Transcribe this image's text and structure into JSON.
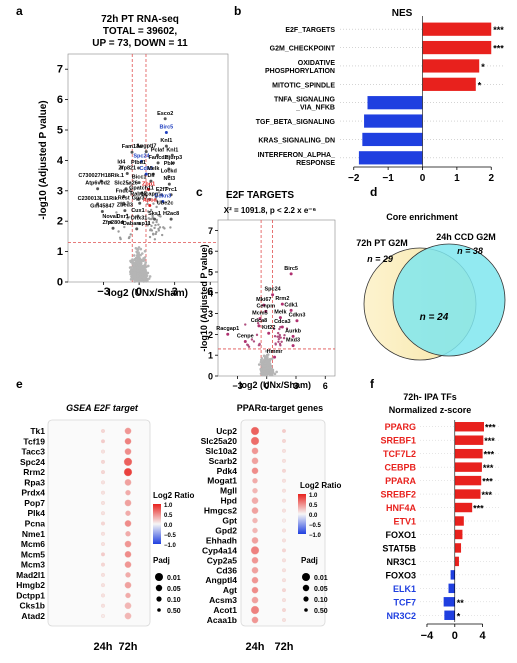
{
  "panels": {
    "a": {
      "letter": "a",
      "title_lines": [
        "72h PT RNA-seq",
        "TOTAL = 39602,",
        "UP = 73, DOWN = 11"
      ],
      "chart_data": {
        "type": "scatter",
        "xlabel": "log2 (UNx/Sham)",
        "ylabel": "-log10 (Adjusted P value)",
        "xlim": [
          -6,
          7.5
        ],
        "ylim": [
          0,
          7.5
        ],
        "x_ticks": [
          -3,
          0,
          3,
          6
        ],
        "y_ticks": [
          0,
          1,
          2,
          3,
          4,
          5,
          6,
          7
        ],
        "threshold_lines": {
          "x": [
            -0.58,
            0.58
          ],
          "y": 1.3
        },
        "labels": [
          {
            "name": "Esco2",
            "x": 2.2,
            "y": 5.5,
            "color": "#000000"
          },
          {
            "name": "Birc5",
            "x": 2.3,
            "y": 5.05,
            "color": "#1f3fbf"
          },
          {
            "name": "Knl1",
            "x": 2.3,
            "y": 4.6,
            "color": "#000000"
          },
          {
            "name": "Fam13a",
            "x": -0.6,
            "y": 4.4,
            "color": "#000000"
          },
          {
            "name": "Angptl7",
            "x": 0.6,
            "y": 4.42,
            "color": "#000000"
          },
          {
            "name": "Pclaf",
            "x": 1.55,
            "y": 4.3,
            "color": "#000000"
          },
          {
            "name": "Knl1",
            "x": 2.8,
            "y": 4.3,
            "color": "#000000"
          },
          {
            "name": "Spc24",
            "x": 0.2,
            "y": 4.1,
            "color": "#1f3fbf"
          },
          {
            "name": "Fancd2",
            "x": 1.6,
            "y": 4.05,
            "color": "#000000"
          },
          {
            "name": "Hjurp3",
            "x": 2.9,
            "y": 4.05,
            "color": "#000000"
          },
          {
            "name": "Id4",
            "x": -1.5,
            "y": 3.9,
            "color": "#000000"
          },
          {
            "name": "Plbd1",
            "x": -0.05,
            "y": 3.88,
            "color": "#000000"
          },
          {
            "name": "Pbk",
            "x": 2.5,
            "y": 3.85,
            "color": "#000000"
          },
          {
            "name": "Zfp821",
            "x": -1.0,
            "y": 3.7,
            "color": "#000000"
          },
          {
            "name": "Cdk3",
            "x": 0.6,
            "y": 3.68,
            "color": "#1f3fbf"
          },
          {
            "name": "Melk",
            "x": 1.2,
            "y": 3.68,
            "color": "#000000"
          },
          {
            "name": "Lockd",
            "x": 2.5,
            "y": 3.6,
            "color": "#000000"
          },
          {
            "name": "C730027H18Rik.1",
            "x": -3.2,
            "y": 3.45,
            "color": "#000000"
          },
          {
            "name": "Bicc1",
            "x": 0.0,
            "y": 3.4,
            "color": "#000000"
          },
          {
            "name": "Dll",
            "x": 1.0,
            "y": 3.45,
            "color": "#000000"
          },
          {
            "name": "Ncl3",
            "x": 2.55,
            "y": 3.35,
            "color": "#000000"
          },
          {
            "name": "Atp6v0d2",
            "x": -3.5,
            "y": 3.2,
            "color": "#000000"
          },
          {
            "name": "Slc25a26",
            "x": -1.1,
            "y": 3.2,
            "color": "#000000"
          },
          {
            "name": "Zbp1",
            "x": 0.8,
            "y": 3.18,
            "color": "#e02020"
          },
          {
            "name": "Fndc4",
            "x": -1.3,
            "y": 2.95,
            "color": "#000000"
          },
          {
            "name": "Gpatch11",
            "x": 0.2,
            "y": 3.05,
            "color": "#000000"
          },
          {
            "name": "E2f7",
            "x": 1.9,
            "y": 3.0,
            "color": "#000000"
          },
          {
            "name": "Prc1",
            "x": 2.7,
            "y": 3.0,
            "color": "#000000"
          },
          {
            "name": "Rab17",
            "x": -0.05,
            "y": 2.85,
            "color": "#000000"
          },
          {
            "name": "Ncapg",
            "x": 0.9,
            "y": 2.85,
            "color": "#000000"
          },
          {
            "name": "Cdkn3",
            "x": 2.0,
            "y": 2.78,
            "color": "#1f3fbf"
          },
          {
            "name": "C230013L11Rik",
            "x": -3.5,
            "y": 2.7,
            "color": "#000000"
          },
          {
            "name": "Rest",
            "x": -1.3,
            "y": 2.72,
            "color": "#000000"
          },
          {
            "name": "Gpr37",
            "x": 0.05,
            "y": 2.72,
            "color": "#000000"
          },
          {
            "name": "Apoa",
            "x": 0.9,
            "y": 2.65,
            "color": "#e02020"
          },
          {
            "name": "Ube2c",
            "x": 2.2,
            "y": 2.55,
            "color": "#000000"
          },
          {
            "name": "Gm45847",
            "x": -3.1,
            "y": 2.45,
            "color": "#000000"
          },
          {
            "name": "Zbed3",
            "x": -1.2,
            "y": 2.48,
            "color": "#000000"
          },
          {
            "name": "Cux1",
            "x": -0.1,
            "y": 2.3,
            "color": "#000000"
          },
          {
            "name": "Sks1",
            "x": 1.3,
            "y": 2.2,
            "color": "#000000"
          },
          {
            "name": "H2ac8",
            "x": 2.7,
            "y": 2.2,
            "color": "#000000"
          },
          {
            "name": "Nova1",
            "x": -2.4,
            "y": 2.1,
            "color": "#000000"
          },
          {
            "name": "Oxr1",
            "x": -1.4,
            "y": 2.1,
            "color": "#000000"
          },
          {
            "name": "Dhx31",
            "x": 0.0,
            "y": 2.05,
            "color": "#000000"
          },
          {
            "name": "Zfp280d",
            "x": -2.2,
            "y": 1.9,
            "color": "#000000"
          },
          {
            "name": "Dabarsp11",
            "x": -0.2,
            "y": 1.88,
            "color": "#000000"
          }
        ]
      }
    },
    "b": {
      "letter": "b",
      "chart_data": {
        "type": "bar",
        "title": "NES",
        "categories": [
          "E2F_TARGETS",
          "G2M_CHECKPOINT",
          "OXIDATIVE PHOSPHORYLATION",
          "MITOTIC_SPINDLE",
          "TNFA_SIGNALING _VIA_NFKB",
          "TGF_BETA_SIGNALING",
          "KRAS_SIGNALING_DN",
          "INTERFERON_ALPHA_ RESPONSE"
        ],
        "category_lines": [
          [
            "E2F_TARGETS"
          ],
          [
            "G2M_CHECKPOINT"
          ],
          [
            "OXIDATIVE",
            "PHOSPHORYLATION"
          ],
          [
            "MITOTIC_SPINDLE"
          ],
          [
            "TNFA_SIGNALING",
            "_VIA_NFKB"
          ],
          [
            "TGF_BETA_SIGNALING"
          ],
          [
            "KRAS_SIGNALING_DN"
          ],
          [
            "INTERFERON_ALPHA_",
            "RESPONSE"
          ]
        ],
        "values": [
          2.0,
          2.0,
          1.65,
          1.55,
          -1.6,
          -1.7,
          -1.75,
          -1.85
        ],
        "significance": [
          "***",
          "***",
          "*",
          "*",
          "",
          "",
          "",
          ""
        ],
        "xlim": [
          -2.4,
          2.4
        ],
        "x_ticks": [
          -2,
          -1,
          0,
          1,
          2
        ],
        "colors": {
          "positive": "#e8211d",
          "negative": "#1f3fe0"
        }
      }
    },
    "c": {
      "letter": "c",
      "title": "E2F TARGETS",
      "stat_text": "X² = 1091.8, p < 2.2 x e⁻⁶",
      "chart_data": {
        "type": "scatter",
        "xlabel": "log2 (UNx/Sham)",
        "ylabel": "-log10 (Adjusted P value)",
        "xlim": [
          -5,
          7
        ],
        "ylim": [
          0,
          7.5
        ],
        "x_ticks": [
          -3,
          0,
          3,
          6
        ],
        "y_ticks": [
          0,
          1,
          2,
          3,
          4,
          5,
          6,
          7
        ],
        "threshold_lines": {
          "x": [
            -0.58,
            0.58
          ],
          "y": 1.3
        },
        "labels": [
          {
            "name": "Birc5",
            "x": 2.5,
            "y": 5.1
          },
          {
            "name": "Spc24",
            "x": 0.6,
            "y": 4.1
          },
          {
            "name": "Mki67",
            "x": -0.3,
            "y": 3.6
          },
          {
            "name": "Rrm2",
            "x": 1.6,
            "y": 3.65
          },
          {
            "name": "Cenpm",
            "x": -0.1,
            "y": 3.3
          },
          {
            "name": "Cdk1",
            "x": 2.5,
            "y": 3.35
          },
          {
            "name": "Mcm5",
            "x": -0.7,
            "y": 2.95
          },
          {
            "name": "Melk",
            "x": 1.4,
            "y": 3.0
          },
          {
            "name": "Cdkn3",
            "x": 3.1,
            "y": 2.85
          },
          {
            "name": "Cdca8",
            "x": -0.8,
            "y": 2.6
          },
          {
            "name": "Cdca3",
            "x": 1.6,
            "y": 2.55
          },
          {
            "name": "Racgap1",
            "x": -4.0,
            "y": 2.2
          },
          {
            "name": "Kif22",
            "x": 0.2,
            "y": 2.25
          },
          {
            "name": "Aurkb",
            "x": 2.7,
            "y": 2.1
          },
          {
            "name": "Cenpe",
            "x": -2.2,
            "y": 1.85
          },
          {
            "name": "Mxd3",
            "x": 2.7,
            "y": 1.65
          },
          {
            "name": "Hmmr",
            "x": 0.8,
            "y": 1.1
          }
        ]
      }
    },
    "d": {
      "letter": "d",
      "title": "Core enrichment",
      "chart_data": {
        "type": "venn",
        "sets": [
          {
            "name": "72h PT G2M",
            "n_label": "n = 29",
            "color": "#fdf0c2"
          },
          {
            "name": "24h CCD G2M",
            "n_label": "n = 38",
            "color": "#7fe6ef"
          }
        ],
        "overlap_label": "n = 24"
      }
    },
    "e": {
      "letter": "e",
      "chart_data": [
        {
          "type": "scatter",
          "title": "GSEA E2F target",
          "categories": [
            "Tk1",
            "Tcf19",
            "Tacc3",
            "Spc24",
            "Rrm2",
            "Rpa3",
            "Prdx4",
            "Pop7",
            "Plk4",
            "Pcna",
            "Nme1",
            "Mcm6",
            "Mcm5",
            "Mcm3",
            "Mad2l1",
            "Hmgb2",
            "Dctpp1",
            "Cks1b",
            "Atad2"
          ],
          "x": [
            "24h",
            "72h"
          ],
          "log2_ratio_24h": [
            0.15,
            0.2,
            0.1,
            0.15,
            0.15,
            0.1,
            0.1,
            0.1,
            0.1,
            0.15,
            0.1,
            0.1,
            0.2,
            0.15,
            0.1,
            0.1,
            0.1,
            0.1,
            0.05
          ],
          "log2_ratio_72h": [
            0.45,
            0.55,
            0.5,
            0.7,
            0.85,
            0.4,
            0.35,
            0.4,
            0.35,
            0.5,
            0.35,
            0.45,
            0.5,
            0.45,
            0.35,
            0.4,
            0.35,
            0.3,
            0.3
          ],
          "padj_24h": [
            0.5,
            0.5,
            0.5,
            0.5,
            0.5,
            0.5,
            0.5,
            0.5,
            0.5,
            0.5,
            0.5,
            0.5,
            0.5,
            0.5,
            0.5,
            0.5,
            0.5,
            0.5,
            0.5
          ],
          "padj_72h": [
            0.05,
            0.05,
            0.05,
            0.01,
            0.01,
            0.05,
            0.1,
            0.05,
            0.1,
            0.05,
            0.1,
            0.05,
            0.05,
            0.05,
            0.1,
            0.05,
            0.1,
            0.05,
            0.05
          ]
        },
        {
          "type": "scatter",
          "title": "PPARα-target genes",
          "categories": [
            "Ucp2",
            "Slc25a20",
            "Slc10a2",
            "Scarb2",
            "Pdk4",
            "Mogat1",
            "Mgll",
            "Hpd",
            "Hmgcs2",
            "Gpt",
            "Gpd2",
            "Ehhadh",
            "Cyp4a14",
            "Cyp2a5",
            "Cd36",
            "Angptl4",
            "Agt",
            "Acsm3",
            "Acot1",
            "Acaa1b"
          ],
          "x": [
            "24h",
            "72h"
          ],
          "log2_ratio_24h": [
            0.7,
            0.65,
            0.45,
            0.4,
            0.5,
            0.35,
            0.3,
            0.35,
            0.4,
            0.3,
            0.3,
            0.4,
            0.55,
            0.45,
            0.4,
            0.45,
            0.5,
            0.4,
            0.55,
            0.45
          ],
          "log2_ratio_72h": [
            0.2,
            0.15,
            0.1,
            0.1,
            0.15,
            0.1,
            0.1,
            0.1,
            0.1,
            0.05,
            0.1,
            0.1,
            0.15,
            0.1,
            0.1,
            0.1,
            0.15,
            0.1,
            0.15,
            0.1
          ],
          "padj_24h": [
            0.01,
            0.01,
            0.05,
            0.05,
            0.05,
            0.1,
            0.1,
            0.05,
            0.05,
            0.1,
            0.1,
            0.05,
            0.01,
            0.05,
            0.05,
            0.05,
            0.05,
            0.05,
            0.01,
            0.05
          ],
          "padj_72h": [
            0.5,
            0.5,
            0.5,
            0.5,
            0.5,
            0.5,
            0.5,
            0.5,
            0.5,
            0.5,
            0.5,
            0.5,
            0.5,
            0.5,
            0.5,
            0.5,
            0.5,
            0.5,
            0.5,
            0.5
          ]
        }
      ],
      "legend": {
        "color_title": "Log2 Ratio",
        "color_ticks": [
          "1.0",
          "0.5",
          "0.0",
          "-0.5",
          "-1.0"
        ],
        "size_title": "Padj",
        "size_levels": [
          "0.01",
          "0.05",
          "0.10",
          "0.50"
        ]
      }
    },
    "f": {
      "letter": "f",
      "title_lines": [
        "72h- IPA TFs",
        "Normalized  z-score"
      ],
      "chart_data": {
        "type": "bar",
        "categories": [
          "PPARG",
          "SREBF1",
          "TCF7L2",
          "CEBPB",
          "PPARA",
          "SREBF2",
          "HNF4A",
          "ETV1",
          "FOXO1",
          "STAT5B",
          "NR3C1",
          "FOXO3",
          "ELK1",
          "TCF7",
          "NR3C2"
        ],
        "label_colors": [
          "#e8211d",
          "#e8211d",
          "#e8211d",
          "#e8211d",
          "#e8211d",
          "#e8211d",
          "#e8211d",
          "#e8211d",
          "#000000",
          "#000000",
          "#000000",
          "#000000",
          "#1f3fe0",
          "#1f3fe0",
          "#1f3fe0"
        ],
        "values": [
          4.2,
          4.1,
          4.0,
          3.9,
          3.8,
          3.7,
          2.5,
          1.3,
          1.1,
          0.9,
          0.6,
          -0.6,
          -0.9,
          -1.6,
          -1.5
        ],
        "significance": [
          "***",
          "***",
          "***",
          "***",
          "***",
          "***",
          "***",
          "",
          "",
          "",
          "",
          "",
          "",
          "**",
          "*"
        ],
        "xlim": [
          -5,
          6.5
        ],
        "x_ticks": [
          -4,
          0,
          4
        ],
        "colors": {
          "positive": "#e8211d",
          "negative": "#1f3fe0"
        }
      }
    }
  }
}
